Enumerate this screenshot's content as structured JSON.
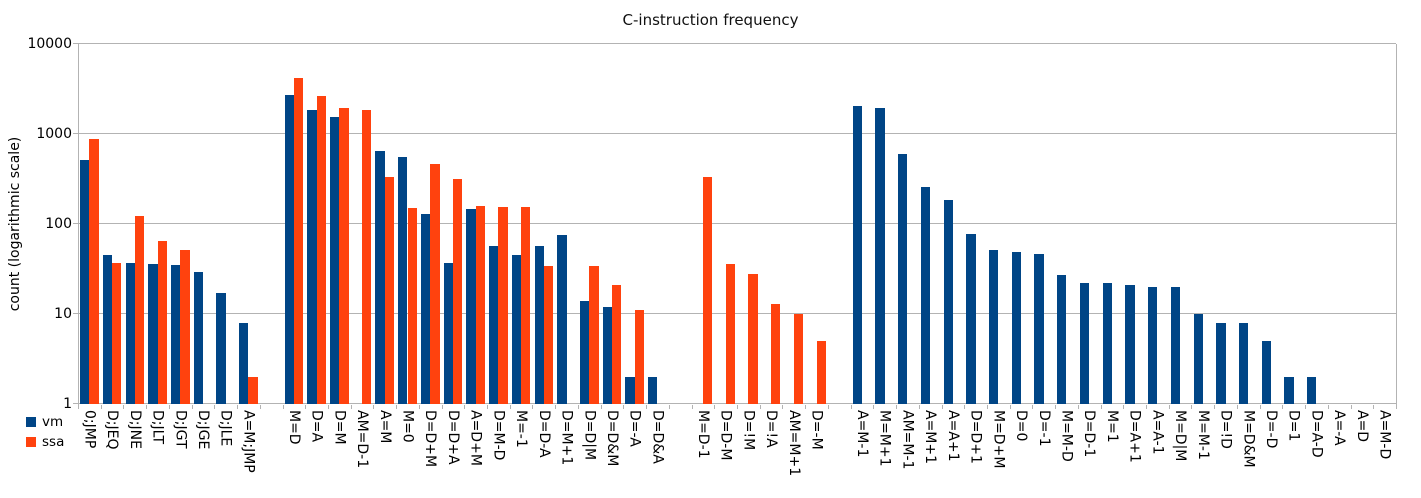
{
  "chart_data": {
    "type": "bar",
    "yscale": "log",
    "ylim": [
      1,
      10000
    ],
    "title": "C-instruction frequency",
    "xlabel": "",
    "ylabel": "count (logarithmic scale)",
    "ytick_labels": [
      "1",
      "10",
      "100",
      "1000",
      "10000"
    ],
    "grid": true,
    "legend_position": "bottom-left",
    "group_gap_slots": 1,
    "series": [
      {
        "name": "vm",
        "color": "#004586"
      },
      {
        "name": "ssa",
        "color": "#ff420e"
      }
    ],
    "groups": [
      {
        "categories": [
          "0;JMP",
          "D;JEQ",
          "D;JNE",
          "D;JLT",
          "D;JGT",
          "D;JGE",
          "D;JLE",
          "A=M;JMP"
        ],
        "vm": [
          510,
          45,
          37,
          36,
          35,
          29,
          17,
          8
        ],
        "ssa": [
          880,
          37,
          122,
          65,
          51,
          0,
          0,
          2
        ]
      },
      {
        "categories": [
          "M=D",
          "D=A",
          "D=M",
          "AM=D-1",
          "A=M",
          "M=0",
          "D=D+M",
          "D=D+A",
          "A=D+M",
          "D=M-D",
          "M=-1",
          "D=D-A",
          "D=M+1",
          "D=D|M",
          "D=D&M",
          "D=-A",
          "D=D&A"
        ],
        "vm": [
          2700,
          1830,
          1540,
          0,
          640,
          560,
          130,
          37,
          145,
          57,
          45,
          57,
          76,
          14,
          12,
          2,
          2
        ],
        "ssa": [
          4200,
          2640,
          1950,
          1850,
          330,
          150,
          460,
          320,
          160,
          155,
          155,
          34,
          0,
          34,
          21,
          11,
          0
        ]
      },
      {
        "categories": [
          "M=D-1",
          "D=D-M",
          "D=!M",
          "D=!A",
          "AM=M+1",
          "D=-M"
        ],
        "vm": [
          0,
          0,
          0,
          0,
          0,
          0
        ],
        "ssa": [
          330,
          36,
          28,
          13,
          10,
          5
        ]
      },
      {
        "categories": [
          "A=M-1",
          "M=M+1",
          "AM=M-1",
          "A=M+1",
          "A=A+1",
          "D=D+1",
          "M=D+M",
          "D=0",
          "D=-1",
          "M=M-D",
          "D=D-1",
          "M=1",
          "D=A+1",
          "A=A-1",
          "M=D|M",
          "M=M-1",
          "D=!D",
          "M=D&M",
          "D=-D",
          "D=1",
          "D=A-D",
          "A=-A",
          "A=D",
          "A=M-D"
        ],
        "vm": [
          2050,
          1950,
          600,
          260,
          185,
          78,
          51,
          49,
          47,
          27,
          22,
          22,
          21,
          20,
          20,
          10,
          8,
          8,
          5,
          2,
          2,
          1,
          1,
          1
        ],
        "ssa": [
          0,
          0,
          0,
          0,
          0,
          0,
          0,
          0,
          0,
          0,
          0,
          0,
          0,
          0,
          0,
          0,
          0,
          0,
          0,
          0,
          0,
          0,
          0,
          0
        ]
      }
    ]
  }
}
